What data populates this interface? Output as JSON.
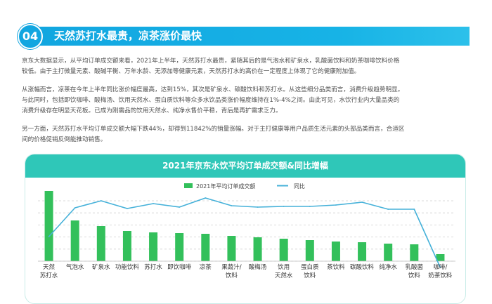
{
  "header": {
    "number": "04",
    "title": "天然苏打水最贵，凉茶涨价最快"
  },
  "paragraphs": {
    "p1_l1": "京东大数据显示，从平均订单成交额来看，2021年上半年，天然苏打水最贵，紧随其后的是气泡水和矿泉水，乳酸菌饮料和奶茶咖啡饮料价格",
    "p1_l2": "较低。由于主打微量元素、酸碱平衡、万年水龄、无添加等健康元素，天然苏打水的高价在一定程度上体现了它的健康附加值。",
    "p2_l1": "从涨幅而言，凉茶在今年上半年同比涨价幅度最高，达到15%，其次是矿泉水、碳酸饮料和苏打水。从这些细分品类而言，消费升级趋势明显。",
    "p2_l2": "与此同时，包括即饮咖啡、酸梅汤、饮用天然水、蛋白质饮料等众多水饮品类涨价幅度维持在1%-4%之间。由此可见，水饮行业内大量品类的",
    "p2_l3": "消费升级存在明显天花板。已成为刚需品的饮用天然水、纯净水售价平稳，背后是再扩需求乏力。",
    "p3_l1": "另一方面，天然苏打水平均订单成交额大幅下跌44%，却得到11842%的销量涨幅。对于主打健康等用户品质生活元素的头部品类而言，合适区",
    "p3_l2": "间的价格促销反倒能推动销售。"
  },
  "chart_data": {
    "type": "bar+line",
    "title": "2021年京东水饮平均订单成交额&同比增幅",
    "legend": {
      "bar": "2021年平均订单成交额",
      "line": "同比"
    },
    "categories": [
      [
        "天然",
        "苏打水"
      ],
      [
        "气泡水"
      ],
      [
        "矿泉水"
      ],
      [
        "功能饮料"
      ],
      [
        "苏打水"
      ],
      [
        "即饮咖啡"
      ],
      [
        "凉茶"
      ],
      [
        "果蔬汁/",
        "饮料"
      ],
      [
        "酸梅汤"
      ],
      [
        "饮用",
        "天然水"
      ],
      [
        "蛋白质",
        "饮料"
      ],
      [
        "茶饮料"
      ],
      [
        "碳酸饮料"
      ],
      [
        "纯净水"
      ],
      [
        "乳酸菌",
        "饮料"
      ],
      [
        "咖啡/",
        "奶茶饮料"
      ]
    ],
    "bar_values": [
      100,
      58,
      50,
      43,
      41,
      40,
      39,
      36,
      34,
      32,
      30,
      28,
      27,
      25,
      24,
      10
    ],
    "line_values": [
      35,
      76,
      86,
      75,
      82,
      77,
      90,
      79,
      77,
      78,
      78,
      80,
      84,
      74,
      74,
      -9
    ],
    "ylim": [
      0,
      110
    ],
    "grid": true,
    "axis_labels_shown": false,
    "colors": {
      "bar": "#33c05b",
      "line": "#45b1d9",
      "grid": "#cfcfcf"
    }
  }
}
